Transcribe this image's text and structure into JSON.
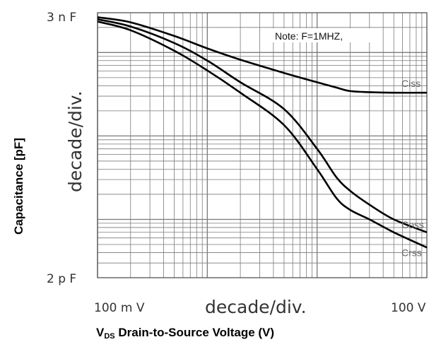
{
  "chart_data": {
    "type": "line",
    "title": "",
    "xlabel": {
      "main": "V",
      "sub": "DS",
      "rest": "  Drain-to-Source Voltage (V)"
    },
    "ylabel": "Capacitance [pF]",
    "x_tick_labels": [
      "100 m V",
      "100  V"
    ],
    "y_tick_labels": [
      "3 n F",
      "2 p F"
    ],
    "x_scale_label": "decade/div.",
    "y_scale_label": "decade/div.",
    "x_scale": "log",
    "y_scale": "log",
    "xlim": [
      0.1,
      100
    ],
    "ylim": [
      2,
      3000
    ],
    "grid": true,
    "note": "Note: F=1MHZ,",
    "series": [
      {
        "name": "Ciss",
        "x": [
          0.1,
          0.2,
          0.5,
          1,
          2,
          5,
          10,
          15,
          20,
          30,
          50,
          100
        ],
        "y": [
          2650,
          2300,
          1580,
          1120,
          820,
          570,
          440,
          380,
          345,
          335,
          330,
          330
        ]
      },
      {
        "name": "Coss",
        "x": [
          0.1,
          0.2,
          0.5,
          1,
          2,
          5,
          10,
          15,
          20,
          30,
          50,
          100
        ],
        "y": [
          2500,
          2050,
          1300,
          800,
          440,
          210,
          70,
          32,
          22,
          15,
          10,
          7
        ]
      },
      {
        "name": "Crss",
        "x": [
          0.1,
          0.2,
          0.5,
          1,
          2,
          5,
          10,
          15,
          20,
          30,
          50,
          100
        ],
        "y": [
          2350,
          1850,
          1050,
          610,
          330,
          135,
          40,
          18,
          13,
          10,
          7,
          4.6
        ]
      }
    ]
  },
  "colors": {
    "grid": "#7a7a7a",
    "curve": "#000000",
    "curve_label": "#666666"
  }
}
